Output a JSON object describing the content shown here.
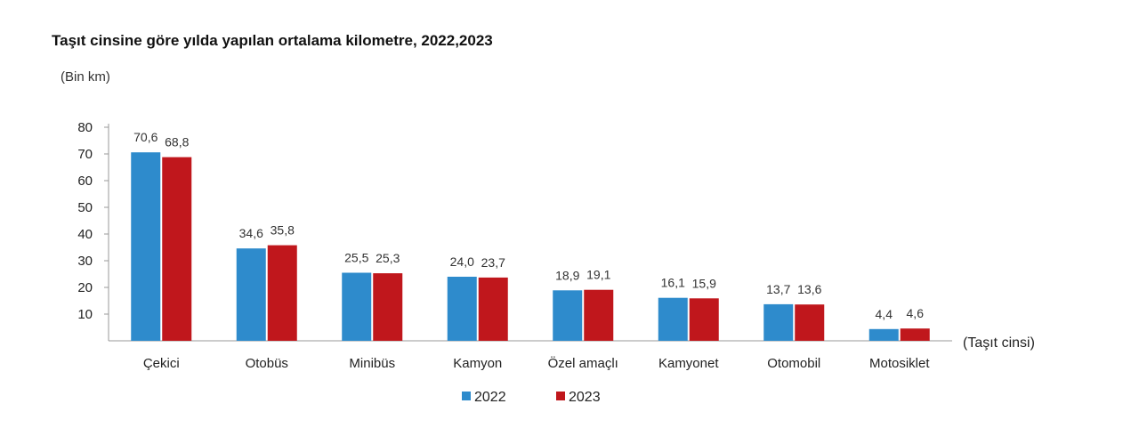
{
  "title": "Taşıt cinsine göre yılda yapılan ortalama kilometre, 2022,2023",
  "unit_label": "(Bin km)",
  "colors": {
    "s2022": "#2e8bcc",
    "s2023": "#c0171c"
  },
  "chart_data": {
    "type": "bar",
    "title": "Taşıt cinsine göre yılda yapılan ortalama kilometre, 2022,2023",
    "ylabel": "(Bin km)",
    "xlabel": "(Taşıt cinsi)",
    "ylim": [
      0,
      80
    ],
    "yticks": [
      10,
      20,
      30,
      40,
      50,
      60,
      70,
      80
    ],
    "categories": [
      "Çekici",
      "Otobüs",
      "Minibüs",
      "Kamyon",
      "Özel amaçlı",
      "Kamyonet",
      "Otomobil",
      "Motosiklet"
    ],
    "series": [
      {
        "name": "2022",
        "values": [
          70.6,
          34.6,
          25.5,
          24.0,
          18.9,
          16.1,
          13.7,
          4.4
        ],
        "labels": [
          "70,6",
          "34,6",
          "25,5",
          "24,0",
          "18,9",
          "16,1",
          "13,7",
          "4,4"
        ]
      },
      {
        "name": "2023",
        "values": [
          68.8,
          35.8,
          25.3,
          23.7,
          19.1,
          15.9,
          13.6,
          4.6
        ],
        "labels": [
          "68,8",
          "35,8",
          "25,3",
          "23,7",
          "19,1",
          "15,9",
          "13,6",
          "4,6"
        ]
      }
    ],
    "grid": false,
    "legend": "bottom"
  }
}
